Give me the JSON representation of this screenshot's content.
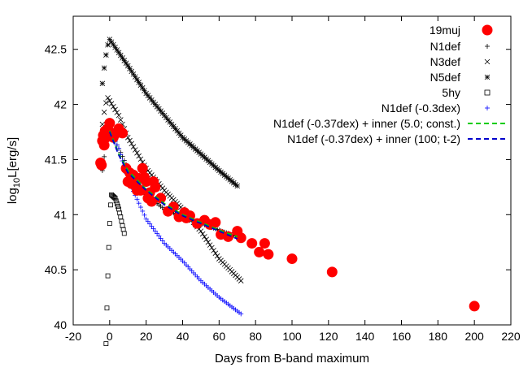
{
  "chart_data": {
    "type": "scatter",
    "xlabel": "Days from B-band maximum",
    "ylabel": "log10L[erg/s]",
    "xlim": [
      -20,
      220
    ],
    "ylim": [
      40,
      42.8
    ],
    "xticks": [
      -20,
      0,
      20,
      40,
      60,
      80,
      100,
      120,
      140,
      160,
      180,
      200,
      220
    ],
    "yticks": [
      40,
      40.5,
      41,
      41.5,
      42,
      42.5
    ],
    "ytick_labels": [
      "40",
      "40.5",
      "41",
      "41.5",
      "42",
      "42.5"
    ],
    "legend_position": "top-right",
    "series": [
      {
        "name": "19muj",
        "marker": "filled-circle",
        "color": "#ff0000",
        "points": [
          [
            -5,
            41.47
          ],
          [
            -4.5,
            41.45
          ],
          [
            -4,
            41.67
          ],
          [
            -3.5,
            41.72
          ],
          [
            -3,
            41.63
          ],
          [
            -2.5,
            41.76
          ],
          [
            -2,
            41.7
          ],
          [
            -1,
            41.78
          ],
          [
            0,
            41.83
          ],
          [
            1,
            41.74
          ],
          [
            2,
            41.7
          ],
          [
            3,
            41.73
          ],
          [
            4,
            41.75
          ],
          [
            5,
            41.78
          ],
          [
            6,
            41.75
          ],
          [
            7,
            41.74
          ],
          [
            9,
            41.42
          ],
          [
            10,
            41.3
          ],
          [
            11,
            41.38
          ],
          [
            12,
            41.28
          ],
          [
            13,
            41.36
          ],
          [
            14,
            41.28
          ],
          [
            15,
            41.22
          ],
          [
            16,
            41.33
          ],
          [
            17,
            41.22
          ],
          [
            18,
            41.42
          ],
          [
            19,
            41.34
          ],
          [
            20,
            41.3
          ],
          [
            21,
            41.15
          ],
          [
            22,
            41.2
          ],
          [
            23,
            41.12
          ],
          [
            24,
            41.3
          ],
          [
            25,
            41.25
          ],
          [
            28,
            41.15
          ],
          [
            32,
            41.03
          ],
          [
            35,
            41.07
          ],
          [
            38,
            40.98
          ],
          [
            41,
            41.02
          ],
          [
            42,
            40.97
          ],
          [
            44,
            40.99
          ],
          [
            48,
            40.92
          ],
          [
            52,
            40.95
          ],
          [
            55,
            40.91
          ],
          [
            58,
            40.93
          ],
          [
            61,
            40.82
          ],
          [
            65,
            40.8
          ],
          [
            70,
            40.85
          ],
          [
            72,
            40.79
          ],
          [
            78,
            40.74
          ],
          [
            82,
            40.66
          ],
          [
            85,
            40.74
          ],
          [
            87,
            40.64
          ],
          [
            100,
            40.6
          ],
          [
            122,
            40.48
          ],
          [
            200,
            40.17
          ]
        ]
      },
      {
        "name": "N1def",
        "marker": "plus",
        "color": "#000000",
        "start": -4,
        "end": 70,
        "step": 1,
        "peak_x": 0,
        "peak_y": 41.76,
        "rise": 0.09,
        "decay": [
          [
            0,
            41.76
          ],
          [
            5,
            41.6
          ],
          [
            10,
            41.42
          ],
          [
            20,
            41.18
          ],
          [
            30,
            41.05
          ],
          [
            40,
            40.98
          ],
          [
            50,
            40.92
          ],
          [
            60,
            40.86
          ],
          [
            70,
            40.8
          ]
        ]
      },
      {
        "name": "N3def",
        "marker": "cross",
        "color": "#000000",
        "start": -4,
        "end": 72,
        "step": 1,
        "peak_x": -1,
        "peak_y": 42.06,
        "rise": 0.08,
        "decay": [
          [
            -1,
            42.06
          ],
          [
            5,
            41.9
          ],
          [
            10,
            41.7
          ],
          [
            20,
            41.42
          ],
          [
            30,
            41.22
          ],
          [
            40,
            41.05
          ],
          [
            50,
            40.85
          ],
          [
            60,
            40.6
          ],
          [
            72,
            40.4
          ]
        ]
      },
      {
        "name": "N5def",
        "marker": "star",
        "color": "#000000",
        "start": -4,
        "end": 70,
        "step": 1,
        "peak_x": 0,
        "peak_y": 42.59,
        "rise": 0.1,
        "decay": [
          [
            0,
            42.59
          ],
          [
            10,
            42.35
          ],
          [
            20,
            42.1
          ],
          [
            30,
            41.9
          ],
          [
            40,
            41.7
          ],
          [
            50,
            41.55
          ],
          [
            60,
            41.4
          ],
          [
            70,
            41.26
          ]
        ]
      },
      {
        "name": "5hy",
        "marker": "open-square",
        "color": "#000000",
        "start": -2,
        "end": 8,
        "step": 0.5,
        "peak_x": 1,
        "peak_y": 41.18,
        "rise": 0.45,
        "decay": [
          [
            1,
            41.18
          ],
          [
            3,
            41.15
          ],
          [
            5,
            41.05
          ],
          [
            6,
            40.98
          ],
          [
            7,
            40.9
          ],
          [
            8,
            40.83
          ]
        ]
      },
      {
        "name": "N1def (-0.3dex)",
        "marker": "plus",
        "color": "#0000ff",
        "start": -1,
        "end": 72,
        "step": 1,
        "peak_x": 0,
        "peak_y": 41.76,
        "rise": 0.05,
        "decay": [
          [
            0,
            41.76
          ],
          [
            5,
            41.6
          ],
          [
            10,
            41.32
          ],
          [
            20,
            40.96
          ],
          [
            30,
            40.74
          ],
          [
            40,
            40.58
          ],
          [
            50,
            40.4
          ],
          [
            60,
            40.25
          ],
          [
            72,
            40.1
          ]
        ]
      },
      {
        "name": "N1def (-0.37dex) + inner (5.0; const.)",
        "line": "dashed",
        "color": "#00cc00",
        "points": [
          [
            0,
            41.76
          ],
          [
            5,
            41.55
          ],
          [
            10,
            41.4
          ],
          [
            20,
            41.23
          ],
          [
            30,
            41.1
          ],
          [
            40,
            41.0
          ],
          [
            50,
            40.93
          ],
          [
            60,
            40.86
          ],
          [
            70,
            40.8
          ]
        ]
      },
      {
        "name": "N1def (-0.37dex) + inner (100; t-2)",
        "line": "dashed",
        "color": "#0000cc",
        "points": [
          [
            0,
            41.75
          ],
          [
            5,
            41.54
          ],
          [
            10,
            41.38
          ],
          [
            20,
            41.22
          ],
          [
            30,
            41.09
          ],
          [
            40,
            40.99
          ],
          [
            50,
            40.92
          ],
          [
            60,
            40.85
          ],
          [
            70,
            40.78
          ]
        ]
      }
    ]
  },
  "legend": {
    "muj": "19muj",
    "n1": "N1def",
    "n3": "N3def",
    "n5": "N5def",
    "hy": "5hy",
    "n1b": "N1def (-0.3dex)",
    "green": "N1def (-0.37dex) + inner (5.0; const.)",
    "blue": "N1def (-0.37dex) + inner (100; t-2)"
  }
}
